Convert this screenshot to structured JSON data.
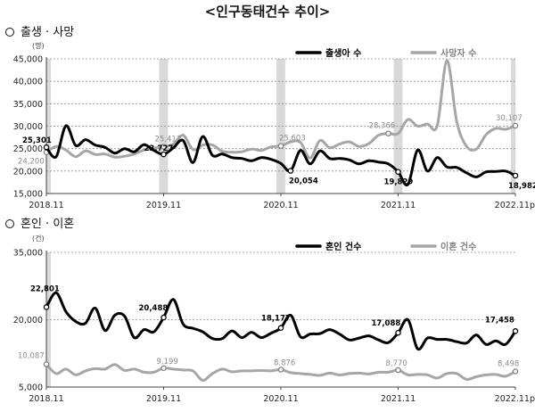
{
  "page_title": "<인구동태건수 추이>",
  "sections": [
    {
      "title": "출생 · 사망"
    },
    {
      "title": "혼인 · 이혼"
    }
  ],
  "chart_data": [
    {
      "type": "line",
      "title": "출생 · 사망",
      "unit": "(명)",
      "ylim": [
        15000,
        45000
      ],
      "yticks": [
        15000,
        20000,
        25000,
        30000,
        35000,
        40000,
        45000
      ],
      "ytick_labels": [
        "15,000",
        "20,000",
        "25,000",
        "30,000",
        "35,000",
        "40,000",
        "45,000"
      ],
      "x": [
        "2018.11",
        "2018.12",
        "2019.01",
        "2019.02",
        "2019.03",
        "2019.04",
        "2019.05",
        "2019.06",
        "2019.07",
        "2019.08",
        "2019.09",
        "2019.10",
        "2019.11",
        "2019.12",
        "2020.01",
        "2020.02",
        "2020.03",
        "2020.04",
        "2020.05",
        "2020.06",
        "2020.07",
        "2020.08",
        "2020.09",
        "2020.10",
        "2020.11",
        "2020.12",
        "2021.01",
        "2021.02",
        "2021.03",
        "2021.04",
        "2021.05",
        "2021.06",
        "2021.07",
        "2021.08",
        "2021.09",
        "2021.10",
        "2021.11",
        "2021.12",
        "2022.01",
        "2022.02",
        "2022.03",
        "2022.04",
        "2022.05",
        "2022.06",
        "2022.07",
        "2022.08",
        "2022.09",
        "2022.10",
        "2022.11"
      ],
      "xtick_labels": [
        {
          "index": 0,
          "label": "2018.11"
        },
        {
          "index": 12,
          "label": "2019.11"
        },
        {
          "index": 24,
          "label": "2020.11"
        },
        {
          "index": 36,
          "label": "2021.11"
        },
        {
          "index": 48,
          "label": "2022.11p"
        }
      ],
      "shaded_index": [
        0,
        12,
        24,
        36,
        48
      ],
      "grid": "horizontal-dashed",
      "legend_position": "top",
      "series": [
        {
          "name": "출생아 수",
          "color": "#000000",
          "values": [
            25301,
            23200,
            30100,
            25700,
            27000,
            25800,
            25300,
            24000,
            25000,
            24300,
            25900,
            24600,
            23727,
            25200,
            26800,
            21900,
            27700,
            23500,
            23800,
            23000,
            22800,
            22300,
            23000,
            22600,
            21700,
            20054,
            24600,
            21600,
            24500,
            22800,
            22800,
            22500,
            21600,
            22300,
            22000,
            21600,
            19829,
            17000,
            24700,
            20000,
            23000,
            20900,
            20800,
            19600,
            18700,
            19800,
            19900,
            20000,
            18982
          ],
          "labels": [
            {
              "index": 0,
              "text": "25,301"
            },
            {
              "index": 12,
              "text": "23,727"
            },
            {
              "index": 25,
              "text": "20,054"
            },
            {
              "index": 36,
              "text": "19,829"
            },
            {
              "index": 48,
              "text": "18,982"
            }
          ]
        },
        {
          "name": "사망자 수",
          "color": "#a6a6a6",
          "values": [
            24200,
            25500,
            24700,
            23200,
            24500,
            23700,
            23800,
            23100,
            23300,
            23800,
            24700,
            25100,
            25412,
            26000,
            28000,
            24800,
            25800,
            25800,
            24400,
            24200,
            24300,
            24900,
            24600,
            25400,
            25603,
            26500,
            26400,
            22900,
            26800,
            25200,
            26000,
            26500,
            25500,
            26100,
            28000,
            28366,
            28366,
            31500,
            30000,
            30500,
            30100,
            44600,
            31000,
            25500,
            24900,
            28100,
            29500,
            29300,
            30107
          ],
          "labels": [
            {
              "index": 0,
              "text": "24,200"
            },
            {
              "index": 12,
              "text": "25,412"
            },
            {
              "index": 24,
              "text": "25,603"
            },
            {
              "index": 35,
              "text": "28,366"
            },
            {
              "index": 48,
              "text": "30,107"
            }
          ]
        }
      ]
    },
    {
      "type": "line",
      "title": "혼인 · 이혼",
      "unit": "(건)",
      "ylim": [
        5000,
        35000
      ],
      "yticks": [
        5000,
        20000,
        35000
      ],
      "ytick_labels": [
        "5,000",
        "20,000",
        "35,000"
      ],
      "x": [
        "2018.11",
        "2018.12",
        "2019.01",
        "2019.02",
        "2019.03",
        "2019.04",
        "2019.05",
        "2019.06",
        "2019.07",
        "2019.08",
        "2019.09",
        "2019.10",
        "2019.11",
        "2019.12",
        "2020.01",
        "2020.02",
        "2020.03",
        "2020.04",
        "2020.05",
        "2020.06",
        "2020.07",
        "2020.08",
        "2020.09",
        "2020.10",
        "2020.11",
        "2020.12",
        "2021.01",
        "2021.02",
        "2021.03",
        "2021.04",
        "2021.05",
        "2021.06",
        "2021.07",
        "2021.08",
        "2021.09",
        "2021.10",
        "2021.11",
        "2021.12",
        "2022.01",
        "2022.02",
        "2022.03",
        "2022.04",
        "2022.05",
        "2022.06",
        "2022.07",
        "2022.08",
        "2022.09",
        "2022.10",
        "2022.11"
      ],
      "xtick_labels": [
        {
          "index": 0,
          "label": "2018.11"
        },
        {
          "index": 12,
          "label": "2019.11"
        },
        {
          "index": 24,
          "label": "2020.11"
        },
        {
          "index": 36,
          "label": "2021.11"
        },
        {
          "index": 48,
          "label": "2022.11p"
        }
      ],
      "shaded_index": [
        0
      ],
      "grid": "horizontal-dashed",
      "legend_position": "top",
      "series": [
        {
          "name": "혼인 건수",
          "color": "#000000",
          "values": [
            22801,
            26000,
            21800,
            19600,
            19200,
            22600,
            17600,
            21000,
            20800,
            16000,
            17800,
            17300,
            20488,
            24500,
            19000,
            18100,
            17300,
            15800,
            15800,
            17500,
            16000,
            17200,
            16000,
            17000,
            18177,
            21000,
            16200,
            16800,
            16900,
            17800,
            16800,
            15500,
            15900,
            16400,
            15500,
            14900,
            17088,
            20000,
            13500,
            15900,
            15600,
            15600,
            15100,
            14800,
            16600,
            14500,
            15300,
            14500,
            17458
          ],
          "labels": [
            {
              "index": 0,
              "text": "22,801"
            },
            {
              "index": 12,
              "text": "20,488"
            },
            {
              "index": 24,
              "text": "18,177"
            },
            {
              "index": 36,
              "text": "17,088"
            },
            {
              "index": 48,
              "text": "17,458"
            }
          ]
        },
        {
          "name": "이혼 건수",
          "color": "#a6a6a6",
          "values": [
            10087,
            8000,
            9000,
            7700,
            8600,
            9100,
            9000,
            10000,
            8700,
            9000,
            8300,
            8300,
            9199,
            9000,
            8800,
            8600,
            6500,
            8000,
            9000,
            8400,
            8600,
            8600,
            8700,
            8600,
            8876,
            8200,
            8000,
            7800,
            7600,
            8100,
            7700,
            8000,
            8100,
            7900,
            8300,
            8300,
            8770,
            7700,
            7800,
            7700,
            7000,
            8000,
            8000,
            6700,
            7300,
            7700,
            7800,
            7400,
            8498
          ],
          "labels": [
            {
              "index": 0,
              "text": "10,087"
            },
            {
              "index": 12,
              "text": "9,199"
            },
            {
              "index": 24,
              "text": "8,876"
            },
            {
              "index": 36,
              "text": "8,770"
            },
            {
              "index": 48,
              "text": "8,498"
            }
          ]
        }
      ]
    }
  ]
}
